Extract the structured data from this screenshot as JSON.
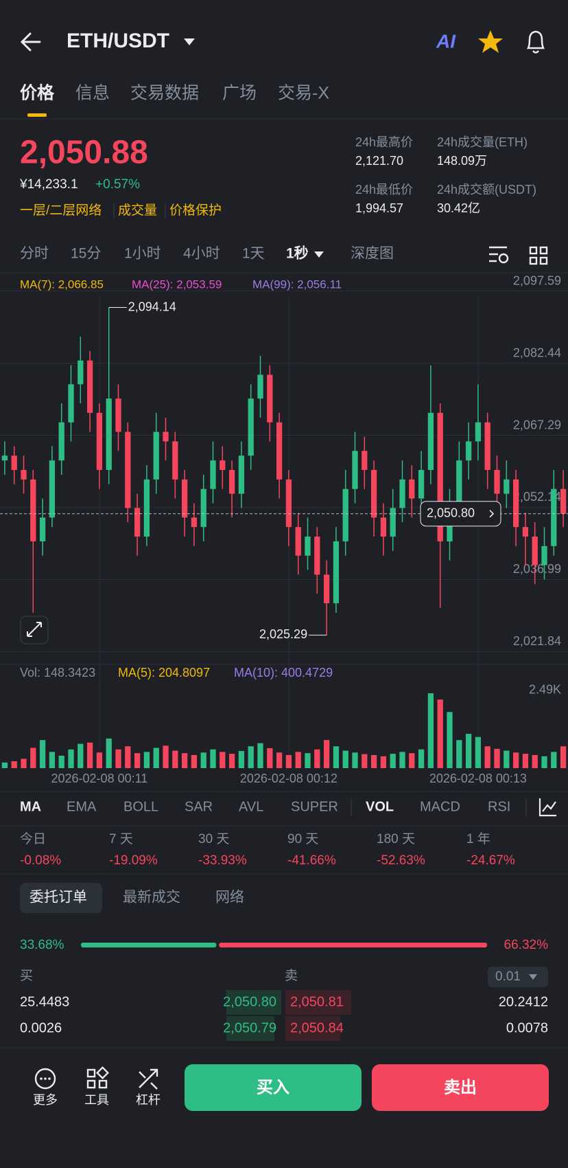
{
  "header": {
    "pair": "ETH/USDT",
    "ai_badge": "AI"
  },
  "tabs": [
    "价格",
    "信息",
    "交易数据",
    "广场",
    "交易-X"
  ],
  "ticker": {
    "price": "2,050.88",
    "cny": "¥14,233.1",
    "change": "+0.57%",
    "tags": [
      "一层/二层网络",
      "成交量",
      "价格保护"
    ],
    "stats": [
      {
        "label": "24h最高价",
        "value": "2,121.70"
      },
      {
        "label": "24h成交量(ETH)",
        "value": "148.09万"
      },
      {
        "label": "24h最低价",
        "value": "1,994.57"
      },
      {
        "label": "24h成交额(USDT)",
        "value": "30.42亿"
      }
    ]
  },
  "intervals": [
    "分时",
    "15分",
    "1小时",
    "4小时",
    "1天",
    "1秒",
    "深度图"
  ],
  "chart_data": [
    {
      "type": "candlestick",
      "indicators": [
        "MA(7): 2,066.85",
        "MA(25): 2,053.59",
        "MA(99): 2,056.11"
      ],
      "categories": [
        null,
        null,
        null,
        null,
        null,
        null,
        null,
        null,
        null,
        null,
        "2026-02-08 00:11",
        null,
        null,
        null,
        null,
        null,
        null,
        null,
        null,
        null,
        null,
        null,
        null,
        null,
        null,
        null,
        null,
        null,
        null,
        null,
        "2026-02-08 00:12",
        null,
        null,
        null,
        null,
        null,
        null,
        null,
        null,
        null,
        null,
        null,
        null,
        null,
        null,
        null,
        null,
        null,
        null,
        null,
        "2026-02-08 00:13",
        null,
        null,
        null,
        null,
        null,
        null,
        null,
        null,
        null
      ],
      "open": [
        2062,
        2063,
        2060,
        2058,
        2045,
        2050,
        2062,
        2070,
        2078,
        2083,
        2072,
        2060,
        2075,
        2068,
        2052,
        2046,
        2058,
        2068,
        2066,
        2058,
        2050,
        2048,
        2056,
        2062,
        2060,
        2055,
        2063,
        2075,
        2080,
        2070,
        2058,
        2048,
        2042,
        2046,
        2038,
        2032,
        2045,
        2056,
        2064,
        2060,
        2050,
        2046,
        2052,
        2058,
        2054,
        2060,
        2072,
        2045,
        2052,
        2062,
        2066,
        2070,
        2060,
        2055,
        2058,
        2048,
        2046,
        2040,
        2044,
        2056
      ],
      "high": [
        2066,
        2065,
        2063,
        2060,
        2054,
        2065,
        2074,
        2082,
        2088,
        2085,
        2074,
        2094.14,
        2078,
        2070,
        2055,
        2061,
        2072,
        2071,
        2068,
        2060,
        2053,
        2059,
        2066,
        2065,
        2062,
        2066,
        2078,
        2084,
        2082,
        2072,
        2060,
        2051,
        2050,
        2048,
        2041,
        2048,
        2060,
        2068,
        2067,
        2062,
        2053,
        2056,
        2062,
        2061,
        2064,
        2082,
        2074,
        2056,
        2066,
        2070,
        2078,
        2072,
        2063,
        2062,
        2060,
        2051,
        2049,
        2048,
        2060,
        2060
      ],
      "low": [
        2059,
        2057,
        2055,
        2030,
        2042,
        2048,
        2059,
        2066,
        2074,
        2068,
        2056,
        2057,
        2064,
        2049,
        2042,
        2044,
        2055,
        2062,
        2054,
        2046,
        2044,
        2045,
        2053,
        2056,
        2050,
        2052,
        2060,
        2071,
        2066,
        2054,
        2044,
        2038,
        2039,
        2034,
        2025.29,
        2030,
        2042,
        2053,
        2056,
        2046,
        2042,
        2043,
        2049,
        2050,
        2051,
        2057,
        2031,
        2041,
        2049,
        2058,
        2062,
        2056,
        2051,
        2052,
        2044,
        2040,
        2036,
        2037,
        2042,
        2048
      ],
      "close": [
        2063,
        2060,
        2058,
        2045,
        2050,
        2062,
        2070,
        2078,
        2083,
        2072,
        2060,
        2075,
        2068,
        2052,
        2046,
        2058,
        2068,
        2066,
        2058,
        2050,
        2048,
        2056,
        2062,
        2060,
        2055,
        2063,
        2075,
        2080,
        2070,
        2058,
        2048,
        2042,
        2046,
        2038,
        2032,
        2045,
        2056,
        2064,
        2060,
        2050,
        2046,
        2052,
        2058,
        2054,
        2060,
        2072,
        2045,
        2052,
        2062,
        2066,
        2070,
        2060,
        2055,
        2058,
        2048,
        2046,
        2040,
        2044,
        2056,
        2050.8
      ],
      "ylim": [
        2019,
        2101
      ],
      "yticks": [
        {
          "value": 2097.59,
          "label": "2,097.59"
        },
        {
          "value": 2082.44,
          "label": "2,082.44"
        },
        {
          "value": 2067.29,
          "label": "2,067.29"
        },
        {
          "value": 2052.14,
          "label": "2,052.14"
        },
        {
          "value": 2036.99,
          "label": "2,036.99"
        },
        {
          "value": 2021.84,
          "label": "2,021.84"
        }
      ],
      "last_price": {
        "value": 2050.8,
        "label": "2,050.80"
      },
      "max_label": {
        "value": 2094.14,
        "label": "2,094.14"
      },
      "min_label": {
        "value": 2025.29,
        "label": "2,025.29"
      },
      "up_color": "#2ebd85",
      "down_color": "#f6465d"
    },
    {
      "type": "bar",
      "indicators": [
        "Vol: 148.3423",
        "MA(5): 204.8097",
        "MA(10): 400.4729"
      ],
      "values": [
        180,
        220,
        300,
        650,
        900,
        520,
        400,
        600,
        780,
        820,
        500,
        950,
        600,
        700,
        480,
        520,
        650,
        720,
        560,
        480,
        420,
        500,
        600,
        520,
        460,
        550,
        700,
        800,
        640,
        500,
        420,
        520,
        480,
        600,
        900,
        700,
        560,
        500,
        450,
        420,
        380,
        460,
        520,
        480,
        600,
        2400,
        2200,
        1800,
        900,
        1100,
        1000,
        700,
        620,
        560,
        500,
        460,
        420,
        380,
        520,
        700
      ],
      "ylim": [
        0,
        2600
      ],
      "yticks": [
        {
          "value": 2490,
          "label": "2.49K"
        }
      ]
    }
  ],
  "indicator_tabs": [
    "MA",
    "EMA",
    "BOLL",
    "SAR",
    "AVL",
    "SUPER",
    "VOL",
    "MACD",
    "RSI"
  ],
  "performance": [
    {
      "period": "今日",
      "change": "-0.08%"
    },
    {
      "period": "7 天",
      "change": "-19.09%"
    },
    {
      "period": "30 天",
      "change": "-33.93%"
    },
    {
      "period": "90 天",
      "change": "-41.66%"
    },
    {
      "period": "180 天",
      "change": "-52.63%"
    },
    {
      "period": "1 年",
      "change": "-24.67%"
    }
  ],
  "order_tabs": [
    "委托订单",
    "最新成交",
    "网络"
  ],
  "orderbook": {
    "bid_ratio": {
      "value": 33.68,
      "label": "33.68%"
    },
    "ask_ratio": {
      "value": 66.32,
      "label": "66.32%"
    },
    "bid_header": "买",
    "ask_header": "卖",
    "precision": "0.01",
    "rows": [
      [
        "25.4483",
        "2,050.80",
        "2,050.81",
        "20.2412"
      ],
      [
        "0.0026",
        "2,050.79",
        "2,050.84",
        "0.0078"
      ]
    ]
  },
  "footer": {
    "tools": [
      "更多",
      "工具",
      "杠杆"
    ],
    "buy": "买入",
    "sell": "卖出"
  }
}
